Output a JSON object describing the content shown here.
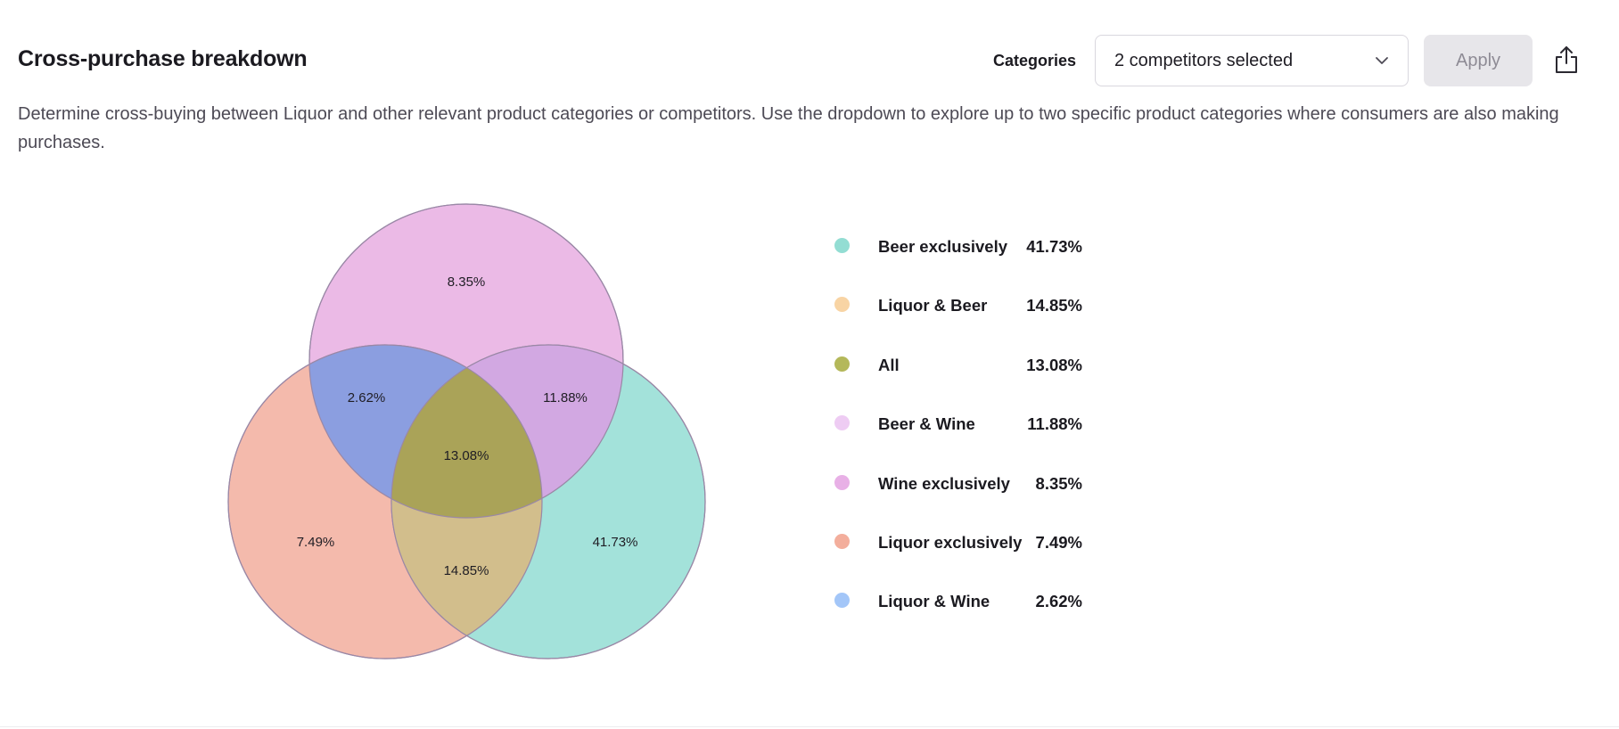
{
  "header": {
    "title": "Cross-purchase breakdown",
    "categories_label": "Categories",
    "dropdown_value": "2 competitors selected",
    "apply_label": "Apply",
    "description": "Determine cross-buying between Liquor and other relevant product categories or competitors. Use the dropdown to explore up to two specific product categories where consumers are also making purchases."
  },
  "icons": {
    "dropdown": "chevron-down-icon",
    "share": "share-icon"
  },
  "venn": {
    "sets": [
      {
        "name": "Wine",
        "color": "#e7aee2"
      },
      {
        "name": "Liquor",
        "color": "#f2ae9e"
      },
      {
        "name": "Beer",
        "color": "#93ddd3"
      }
    ],
    "regions": {
      "wine_only": "8.35%",
      "liquor_wine": "2.62%",
      "beer_wine": "11.88%",
      "all": "13.08%",
      "liquor_only": "7.49%",
      "liquor_beer": "14.85%",
      "beer_only": "41.73%"
    }
  },
  "legend": [
    {
      "name": "Beer exclusively",
      "value": "41.73%",
      "color": "#93ddd3"
    },
    {
      "name": "Liquor & Beer",
      "value": "14.85%",
      "color": "#f8d4a4"
    },
    {
      "name": "All",
      "value": "13.08%",
      "color": "#b4b85a"
    },
    {
      "name": "Beer & Wine",
      "value": "11.88%",
      "color": "#eeccf3"
    },
    {
      "name": "Wine exclusively",
      "value": "8.35%",
      "color": "#e8b0e6"
    },
    {
      "name": "Liquor exclusively",
      "value": "7.49%",
      "color": "#f3ae9c"
    },
    {
      "name": "Liquor & Wine",
      "value": "2.62%",
      "color": "#a3c6f8"
    }
  ]
}
